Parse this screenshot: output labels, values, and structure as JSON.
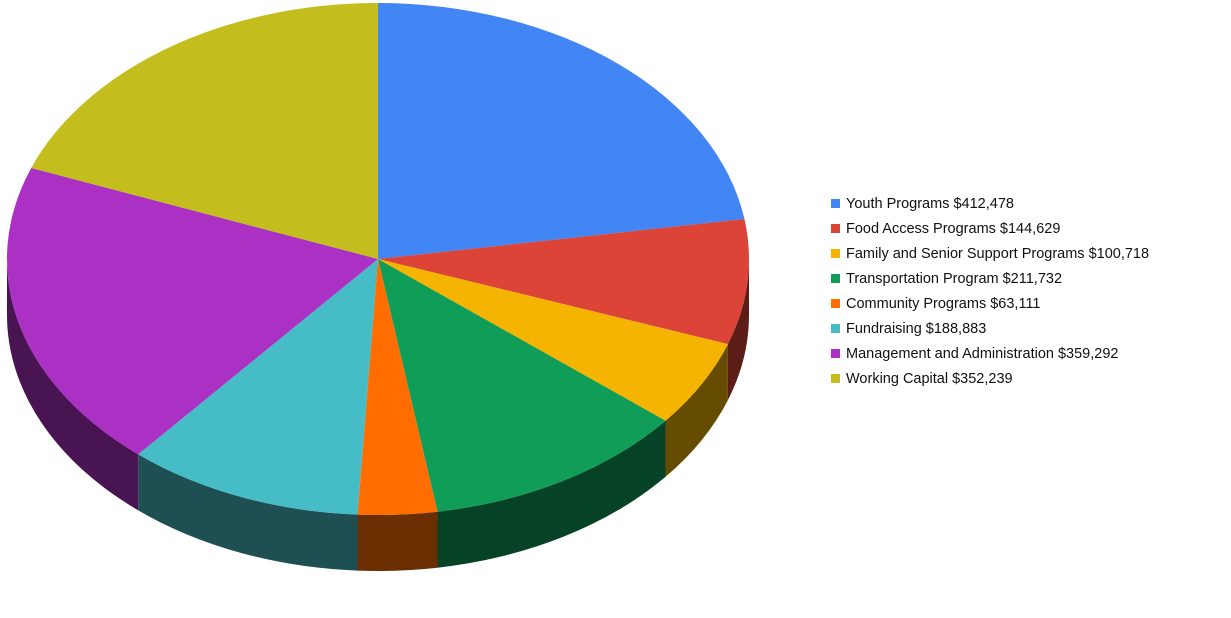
{
  "chart_data": {
    "type": "pie",
    "title": "",
    "three_d": true,
    "legend_position": "right",
    "slices": [
      {
        "label": "Youth Programs $412,478",
        "value": 412478,
        "color": "#4285f4"
      },
      {
        "label": "Food Access Programs $144,629",
        "value": 144629,
        "color": "#db4437"
      },
      {
        "label": "Family and Senior Support Programs $100,718",
        "value": 100718,
        "color": "#f4b400"
      },
      {
        "label": "Transportation Program $211,732",
        "value": 211732,
        "color": "#0f9d58"
      },
      {
        "label": "Community Programs $63,111",
        "value": 63111,
        "color": "#ff6d01"
      },
      {
        "label": "Fundraising $188,883",
        "value": 188883,
        "color": "#46bdc6"
      },
      {
        "label": "Management and Administration $359,292",
        "value": 359292,
        "color": "#ab30c4"
      },
      {
        "label": "Working Capital $352,239",
        "value": 352239,
        "color": "#c3bd1d"
      }
    ]
  }
}
